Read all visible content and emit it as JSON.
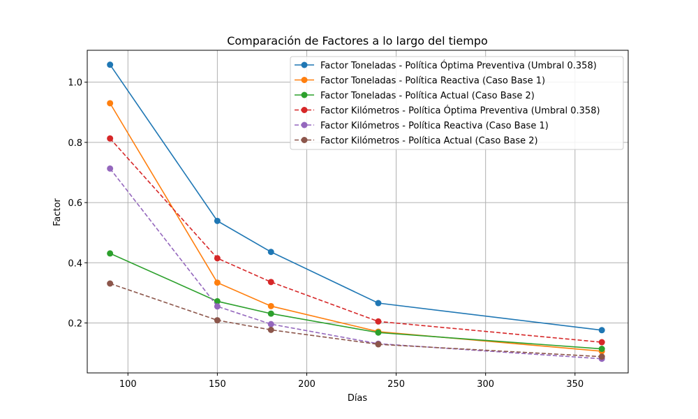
{
  "chart_data": {
    "type": "line",
    "title": "Comparación de Factores a lo largo del tiempo",
    "xlabel": "Días",
    "ylabel": "Factor",
    "xlim": [
      77.25,
      379.75
    ],
    "ylim": [
      0.034,
      1.106
    ],
    "xticks": [
      100,
      150,
      200,
      250,
      300,
      350
    ],
    "yticks": [
      0.2,
      0.4,
      0.6,
      0.8,
      1.0
    ],
    "ytick_labels": [
      "0.2",
      "0.4",
      "0.6",
      "0.8",
      "1.0"
    ],
    "grid": true,
    "legend_position": "top-right",
    "x": [
      90,
      150,
      180,
      240,
      365
    ],
    "series": [
      {
        "name": "Factor Toneladas - Política Óptima Preventiva (Umbral 0.358)",
        "values": [
          1.058,
          0.539,
          0.436,
          0.266,
          0.176
        ],
        "color": "#1f77b4",
        "dashed": false
      },
      {
        "name": "Factor Toneladas - Política Reactiva (Caso Base 1)",
        "values": [
          0.93,
          0.334,
          0.256,
          0.171,
          0.106
        ],
        "color": "#ff7f0e",
        "dashed": false
      },
      {
        "name": "Factor Toneladas - Política Actual (Caso Base 2)",
        "values": [
          0.431,
          0.272,
          0.231,
          0.168,
          0.114
        ],
        "color": "#2ca02c",
        "dashed": false
      },
      {
        "name": "Factor Kilómetros - Política Óptima Preventiva (Umbral 0.358)",
        "values": [
          0.813,
          0.415,
          0.336,
          0.205,
          0.136
        ],
        "color": "#d62728",
        "dashed": true
      },
      {
        "name": "Factor Kilómetros - Política Reactiva (Caso Base 1)",
        "values": [
          0.713,
          0.255,
          0.196,
          0.131,
          0.081
        ],
        "color": "#9467bd",
        "dashed": true
      },
      {
        "name": "Factor Kilómetros - Política Actual (Caso Base 2)",
        "values": [
          0.331,
          0.209,
          0.177,
          0.129,
          0.088
        ],
        "color": "#8c564b",
        "dashed": true
      }
    ]
  }
}
